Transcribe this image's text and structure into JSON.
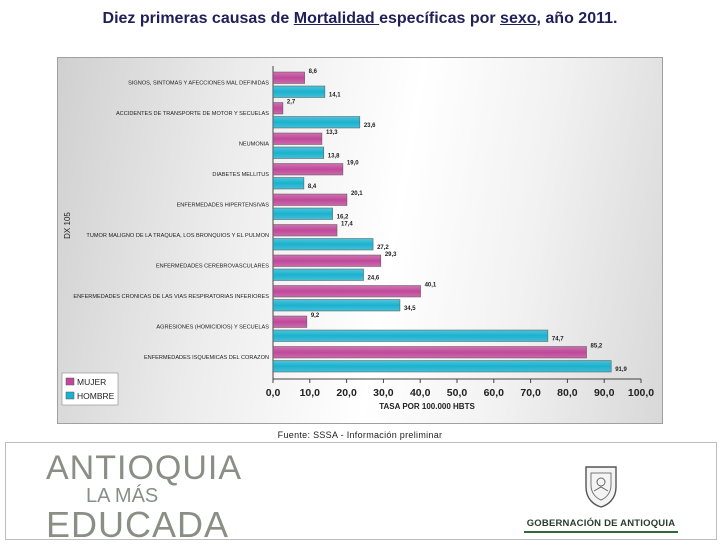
{
  "slide": {
    "title_prefix": "Diez primeras causas de ",
    "title_u1": "Mortalidad ",
    "title_mid": "específicas por ",
    "title_u2": "sexo",
    "title_suffix": ", año 2011.",
    "source": "Fuente: SSSA - Información preliminar"
  },
  "footer": {
    "left_logo": [
      "ANTIOQUIA",
      "LA MÁS",
      "EDUCADA"
    ],
    "right_logo": "GOBERNACIÓN DE ANTIOQUIA",
    "colors": {
      "left_logo": "#8a8f86",
      "right_rule": "#2f6a3a"
    }
  },
  "chart_data": {
    "type": "bar",
    "orientation": "horizontal",
    "ylabel": "DX 105",
    "xlabel": "TASA POR 100.000 HBTS",
    "xlim": [
      0,
      100
    ],
    "xticks": [
      "0,0",
      "10,0",
      "20,0",
      "30,0",
      "40,0",
      "50,0",
      "60,0",
      "70,0",
      "80,0",
      "90,0",
      "100,0"
    ],
    "grid": false,
    "legend_position": "bottom-left",
    "categories": [
      "SIGNOS, SINTOMAS Y AFECCIONES MAL DEFINIDAS",
      "ACCIDENTES DE TRANSPORTE DE MOTOR Y SECUELAS",
      "NEUMONIA",
      "DIABETES MELLITUS",
      "ENFERMEDADES HIPERTENSIVAS",
      "TUMOR MALIGNO DE LA TRAQUEA, LOS BRONQUIOS Y EL PULMON",
      "ENFERMEDADES CEREBROVASCULARES",
      "ENFERMEDADES CRONICAS DE LAS VIAS RESPIRATORIAS INFERIORES",
      "AGRESIONES (HOMICIDIOS) Y SECUELAS",
      "ENFERMEDADES ISQUEMICAS DEL CORAZON"
    ],
    "series": [
      {
        "name": "MUJER",
        "color": "#c0489a",
        "values": [
          8.6,
          2.7,
          13.3,
          19.0,
          20.1,
          17.4,
          29.3,
          40.1,
          9.2,
          85.2
        ],
        "labels": [
          "8,6",
          "2,7",
          "13,3",
          "19,0",
          "20,1",
          "17,4",
          "29,3",
          "40,1",
          "9,2",
          "85,2"
        ]
      },
      {
        "name": "HOMBRE",
        "color": "#1ab2cf",
        "values": [
          14.1,
          23.6,
          13.8,
          8.4,
          16.2,
          27.2,
          24.6,
          34.5,
          74.7,
          91.9
        ],
        "labels": [
          "14,1",
          "23,6",
          "13,8",
          "8,4",
          "16,2",
          "27,2",
          "24,6",
          "34,5",
          "74,7",
          "91,9"
        ]
      }
    ]
  }
}
